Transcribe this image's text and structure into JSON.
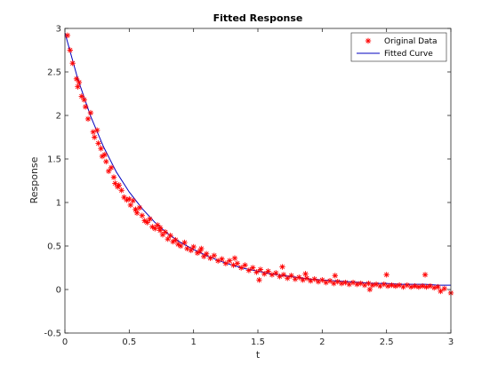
{
  "chart_data": {
    "type": "scatter",
    "title": "Fitted Response",
    "xlabel": "t",
    "ylabel": "Response",
    "xlim": [
      0,
      3
    ],
    "ylim": [
      -0.5,
      3
    ],
    "xticks": [
      "0",
      "0.5",
      "1",
      "1.5",
      "2",
      "2.5",
      "3"
    ],
    "yticks": [
      "-0.5",
      "0",
      "0.5",
      "1",
      "1.5",
      "2",
      "2.5",
      "3"
    ],
    "grid": false,
    "legend_position": "top-right",
    "series": [
      {
        "name": "Original Data",
        "marker": "asterisk",
        "color": "#ff0000",
        "points": [
          [
            0.02,
            2.92
          ],
          [
            0.04,
            2.75
          ],
          [
            0.06,
            2.6
          ],
          [
            0.09,
            2.42
          ],
          [
            0.1,
            2.33
          ],
          [
            0.11,
            2.38
          ],
          [
            0.13,
            2.22
          ],
          [
            0.15,
            2.18
          ],
          [
            0.16,
            2.1
          ],
          [
            0.18,
            1.96
          ],
          [
            0.2,
            2.03
          ],
          [
            0.22,
            1.81
          ],
          [
            0.23,
            1.75
          ],
          [
            0.25,
            1.83
          ],
          [
            0.26,
            1.68
          ],
          [
            0.28,
            1.62
          ],
          [
            0.29,
            1.53
          ],
          [
            0.31,
            1.55
          ],
          [
            0.32,
            1.47
          ],
          [
            0.34,
            1.36
          ],
          [
            0.36,
            1.4
          ],
          [
            0.38,
            1.29
          ],
          [
            0.39,
            1.22
          ],
          [
            0.41,
            1.18
          ],
          [
            0.42,
            1.2
          ],
          [
            0.44,
            1.14
          ],
          [
            0.46,
            1.06
          ],
          [
            0.48,
            1.03
          ],
          [
            0.5,
            1.04
          ],
          [
            0.51,
            0.97
          ],
          [
            0.53,
            1.02
          ],
          [
            0.55,
            0.92
          ],
          [
            0.56,
            0.88
          ],
          [
            0.58,
            0.94
          ],
          [
            0.6,
            0.85
          ],
          [
            0.62,
            0.79
          ],
          [
            0.64,
            0.77
          ],
          [
            0.66,
            0.81
          ],
          [
            0.68,
            0.72
          ],
          [
            0.7,
            0.7
          ],
          [
            0.72,
            0.74
          ],
          [
            0.74,
            0.68
          ],
          [
            0.76,
            0.63
          ],
          [
            0.78,
            0.66
          ],
          [
            0.8,
            0.58
          ],
          [
            0.82,
            0.62
          ],
          [
            0.84,
            0.55
          ],
          [
            0.86,
            0.57
          ],
          [
            0.88,
            0.52
          ],
          [
            0.9,
            0.5
          ],
          [
            0.93,
            0.54
          ],
          [
            0.95,
            0.47
          ],
          [
            0.98,
            0.45
          ],
          [
            1.0,
            0.49
          ],
          [
            1.03,
            0.42
          ],
          [
            1.05,
            0.44
          ],
          [
            1.08,
            0.38
          ],
          [
            1.1,
            0.41
          ],
          [
            1.13,
            0.36
          ],
          [
            1.16,
            0.39
          ],
          [
            1.19,
            0.33
          ],
          [
            1.22,
            0.35
          ],
          [
            1.25,
            0.3
          ],
          [
            1.28,
            0.33
          ],
          [
            1.31,
            0.28
          ],
          [
            1.34,
            0.3
          ],
          [
            1.37,
            0.25
          ],
          [
            1.4,
            0.28
          ],
          [
            1.43,
            0.22
          ],
          [
            1.46,
            0.25
          ],
          [
            1.49,
            0.2
          ],
          [
            1.52,
            0.23
          ],
          [
            1.55,
            0.18
          ],
          [
            1.58,
            0.21
          ],
          [
            1.61,
            0.17
          ],
          [
            1.64,
            0.19
          ],
          [
            1.67,
            0.15
          ],
          [
            1.7,
            0.17
          ],
          [
            1.73,
            0.13
          ],
          [
            1.76,
            0.16
          ],
          [
            1.79,
            0.12
          ],
          [
            1.82,
            0.14
          ],
          [
            1.85,
            0.11
          ],
          [
            1.88,
            0.13
          ],
          [
            1.91,
            0.1
          ],
          [
            1.94,
            0.12
          ],
          [
            1.97,
            0.09
          ],
          [
            2.0,
            0.11
          ],
          [
            2.03,
            0.08
          ],
          [
            2.06,
            0.1
          ],
          [
            2.09,
            0.07
          ],
          [
            2.12,
            0.09
          ],
          [
            2.15,
            0.07
          ],
          [
            2.18,
            0.08
          ],
          [
            2.21,
            0.06
          ],
          [
            2.24,
            0.08
          ],
          [
            2.27,
            0.06
          ],
          [
            2.3,
            0.07
          ],
          [
            2.33,
            0.05
          ],
          [
            2.36,
            0.07
          ],
          [
            2.39,
            0.05
          ],
          [
            2.42,
            0.06
          ],
          [
            2.45,
            0.04
          ],
          [
            2.48,
            0.06
          ],
          [
            2.51,
            0.04
          ],
          [
            2.54,
            0.05
          ],
          [
            2.57,
            0.04
          ],
          [
            2.6,
            0.05
          ],
          [
            2.63,
            0.03
          ],
          [
            2.66,
            0.05
          ],
          [
            2.69,
            0.03
          ],
          [
            2.72,
            0.04
          ],
          [
            2.75,
            0.03
          ],
          [
            2.78,
            0.04
          ],
          [
            2.81,
            0.03
          ],
          [
            2.84,
            0.04
          ],
          [
            2.87,
            0.02
          ],
          [
            2.9,
            0.03
          ],
          [
            2.95,
            0.01
          ],
          [
            3.0,
            -0.04
          ],
          [
            0.55,
            0.92
          ],
          [
            0.74,
            0.71
          ],
          [
            1.06,
            0.47
          ],
          [
            1.32,
            0.36
          ],
          [
            1.51,
            0.11
          ],
          [
            1.69,
            0.26
          ],
          [
            1.87,
            0.18
          ],
          [
            2.1,
            0.16
          ],
          [
            2.37,
            0.0
          ],
          [
            2.5,
            0.17
          ],
          [
            2.8,
            0.17
          ],
          [
            2.92,
            -0.02
          ]
        ]
      },
      {
        "name": "Fitted Curve",
        "color": "#0000bf",
        "x": [
          0,
          0.1,
          0.2,
          0.3,
          0.4,
          0.5,
          0.6,
          0.7,
          0.8,
          0.9,
          1.0,
          1.1,
          1.2,
          1.3,
          1.4,
          1.5,
          1.6,
          1.7,
          1.8,
          1.9,
          2.0,
          2.1,
          2.2,
          2.3,
          2.4,
          2.5,
          2.6,
          2.7,
          2.8,
          2.9,
          3.0
        ],
        "y": [
          2.95,
          2.42,
          1.99,
          1.64,
          1.35,
          1.12,
          0.93,
          0.77,
          0.64,
          0.54,
          0.46,
          0.39,
          0.33,
          0.28,
          0.24,
          0.21,
          0.18,
          0.16,
          0.14,
          0.12,
          0.11,
          0.1,
          0.09,
          0.08,
          0.07,
          0.07,
          0.06,
          0.06,
          0.06,
          0.05,
          0.05
        ]
      }
    ]
  }
}
